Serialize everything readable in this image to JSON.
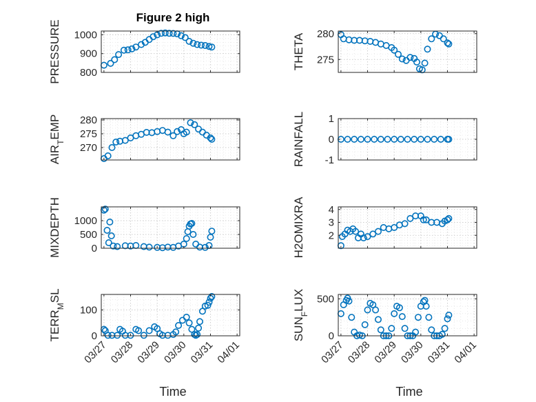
{
  "chart_data": [
    {
      "type": "scatter",
      "title": "Figure 2 high",
      "ylabel": "PRESSURE",
      "ylim": [
        800,
        1020
      ],
      "yticks": [
        "800",
        "900",
        "1000"
      ],
      "series": [
        {
          "name": "PRESSURE",
          "x": [
            0.0,
            0.25,
            0.4,
            0.55,
            0.75,
            0.9,
            1.05,
            1.2,
            1.4,
            1.55,
            1.7,
            1.85,
            2.0,
            2.15,
            2.3,
            2.45,
            2.6,
            2.75,
            2.9,
            3.05,
            3.2,
            3.35,
            3.5,
            3.65,
            3.8,
            3.95,
            4.05
          ],
          "y": [
            838,
            848,
            868,
            895,
            918,
            920,
            925,
            935,
            948,
            960,
            975,
            990,
            1000,
            1008,
            1010,
            1008,
            1007,
            1005,
            995,
            985,
            965,
            955,
            948,
            945,
            943,
            938,
            935
          ]
        }
      ]
    },
    {
      "type": "scatter",
      "title": "",
      "ylabel": "THETA",
      "ylim": [
        272.5,
        280.5
      ],
      "yticks": [
        "275",
        "280"
      ],
      "series": [
        {
          "name": "THETA",
          "x": [
            0.0,
            0.1,
            0.3,
            0.5,
            0.7,
            0.9,
            1.1,
            1.3,
            1.5,
            1.7,
            1.9,
            2.0,
            2.15,
            2.3,
            2.45,
            2.6,
            2.75,
            2.85,
            2.95,
            3.05,
            3.15,
            3.25,
            3.4,
            3.55,
            3.7,
            3.85,
            4.0,
            4.05
          ],
          "y": [
            279.8,
            279.0,
            278.8,
            278.7,
            278.7,
            278.6,
            278.5,
            278.3,
            278.0,
            277.7,
            277.3,
            276.8,
            276.0,
            275.1,
            274.8,
            275.4,
            275.2,
            274.5,
            273.2,
            273.0,
            274.3,
            277.0,
            279.0,
            279.9,
            279.6,
            279.0,
            278.2,
            278.0
          ]
        }
      ]
    },
    {
      "type": "scatter",
      "title": "",
      "ylabel": "AIR_TEMP",
      "ylim": [
        265.5,
        280.5
      ],
      "yticks": [
        "270",
        "275",
        "280"
      ],
      "series": [
        {
          "name": "AIR_TEMP",
          "x": [
            0.0,
            0.15,
            0.3,
            0.45,
            0.6,
            0.8,
            1.0,
            1.2,
            1.4,
            1.6,
            1.8,
            2.0,
            2.2,
            2.4,
            2.6,
            2.75,
            2.9,
            3.0,
            3.1,
            3.25,
            3.4,
            3.55,
            3.7,
            3.85,
            4.0,
            4.05
          ],
          "y": [
            266.0,
            267.0,
            270.0,
            272.0,
            272.3,
            272.6,
            273.5,
            274.3,
            274.8,
            275.5,
            275.4,
            275.8,
            276.2,
            275.6,
            274.3,
            275.8,
            276.5,
            275.0,
            275.6,
            279.0,
            278.3,
            276.7,
            275.6,
            274.5,
            273.5,
            273.0
          ]
        }
      ]
    },
    {
      "type": "scatter",
      "title": "",
      "ylabel": "RAINFALL",
      "ylim": [
        -1,
        1
      ],
      "yticks": [
        "-1",
        "0",
        "1"
      ],
      "series": [
        {
          "name": "RAINFALL",
          "x": [
            0.0,
            0.25,
            0.5,
            0.75,
            1.0,
            1.25,
            1.5,
            1.75,
            2.0,
            2.25,
            2.5,
            2.75,
            3.0,
            3.25,
            3.5,
            3.75,
            4.0,
            4.05
          ],
          "y": [
            0,
            0,
            0,
            0,
            0,
            0,
            0,
            0,
            0,
            0,
            0,
            0,
            0,
            0,
            0,
            0,
            0,
            0
          ]
        }
      ]
    },
    {
      "type": "scatter",
      "title": "",
      "ylabel": "MIXDEPTH",
      "ylim": [
        0,
        1500
      ],
      "yticks": [
        "0",
        "500",
        "1000"
      ],
      "series": [
        {
          "name": "MIXDEPTH",
          "x": [
            0.0,
            0.05,
            0.12,
            0.18,
            0.22,
            0.28,
            0.35,
            0.5,
            0.8,
            1.0,
            1.2,
            1.5,
            1.7,
            2.0,
            2.2,
            2.4,
            2.6,
            2.8,
            3.0,
            3.1,
            3.15,
            3.2,
            3.25,
            3.3,
            3.35,
            3.45,
            3.6,
            3.8,
            3.95,
            4.0,
            4.05
          ],
          "y": [
            1380,
            1420,
            650,
            200,
            950,
            450,
            80,
            60,
            90,
            80,
            100,
            60,
            40,
            30,
            20,
            40,
            30,
            80,
            150,
            350,
            600,
            800,
            880,
            900,
            500,
            150,
            40,
            30,
            100,
            400,
            620
          ]
        }
      ]
    },
    {
      "type": "scatter",
      "title": "",
      "ylabel": "H2OMIXRA",
      "ylim": [
        1,
        4.2
      ],
      "yticks": [
        "2",
        "3",
        "4"
      ],
      "series": [
        {
          "name": "H2OMIXRA",
          "x": [
            0.0,
            0.05,
            0.15,
            0.25,
            0.35,
            0.45,
            0.55,
            0.65,
            0.75,
            0.85,
            1.0,
            1.2,
            1.4,
            1.6,
            1.8,
            2.0,
            2.2,
            2.4,
            2.6,
            2.8,
            3.0,
            3.1,
            3.2,
            3.4,
            3.6,
            3.8,
            3.9,
            4.0,
            4.05
          ],
          "y": [
            1.2,
            1.9,
            2.1,
            2.4,
            2.3,
            2.5,
            2.3,
            1.8,
            2.1,
            1.8,
            1.9,
            2.1,
            2.3,
            2.6,
            2.5,
            2.6,
            2.8,
            2.9,
            3.3,
            3.5,
            3.5,
            3.2,
            3.2,
            3.0,
            3.0,
            2.9,
            3.1,
            3.2,
            3.3
          ]
        }
      ]
    },
    {
      "type": "scatter",
      "title": "",
      "ylabel": "TERR_MSL",
      "ylim": [
        0,
        160
      ],
      "yticks": [
        "0",
        "100"
      ],
      "series": [
        {
          "name": "TERR_MSL",
          "x": [
            0.0,
            0.05,
            0.15,
            0.3,
            0.5,
            0.6,
            0.7,
            0.8,
            1.0,
            1.2,
            1.3,
            1.5,
            1.7,
            1.9,
            2.0,
            2.1,
            2.2,
            2.4,
            2.6,
            2.7,
            2.8,
            2.95,
            3.1,
            3.2,
            3.3,
            3.4,
            3.45,
            3.5,
            3.55,
            3.6,
            3.7,
            3.8,
            3.9,
            3.95,
            4.0,
            4.05
          ],
          "y": [
            25,
            20,
            2,
            2,
            2,
            25,
            18,
            2,
            2,
            25,
            20,
            2,
            20,
            35,
            28,
            8,
            2,
            2,
            5,
            15,
            40,
            60,
            72,
            50,
            25,
            5,
            2,
            5,
            30,
            55,
            95,
            115,
            118,
            130,
            145,
            152
          ]
        }
      ]
    },
    {
      "type": "scatter",
      "title": "",
      "ylabel": "SUN_FLUX",
      "ylim": [
        0,
        560
      ],
      "yticks": [
        "0",
        "500"
      ],
      "series": [
        {
          "name": "SUN_FLUX",
          "x": [
            0.0,
            0.1,
            0.2,
            0.25,
            0.3,
            0.4,
            0.5,
            0.6,
            0.7,
            0.8,
            0.9,
            1.0,
            1.1,
            1.2,
            1.3,
            1.4,
            1.5,
            1.6,
            1.7,
            1.8,
            1.9,
            2.0,
            2.1,
            2.2,
            2.3,
            2.4,
            2.5,
            2.6,
            2.7,
            2.8,
            2.9,
            3.0,
            3.1,
            3.15,
            3.2,
            3.3,
            3.4,
            3.5,
            3.6,
            3.7,
            3.8,
            3.9,
            4.0,
            4.05
          ],
          "y": [
            300,
            420,
            480,
            510,
            470,
            250,
            50,
            0,
            10,
            0,
            150,
            350,
            440,
            420,
            350,
            220,
            80,
            0,
            0,
            0,
            100,
            300,
            400,
            380,
            260,
            100,
            0,
            0,
            0,
            50,
            250,
            400,
            460,
            480,
            400,
            250,
            80,
            0,
            0,
            0,
            20,
            100,
            230,
            280
          ]
        }
      ]
    }
  ],
  "xaxis": {
    "label": "Time",
    "ticks": [
      "03/27",
      "03/28",
      "03/29",
      "03/30",
      "03/31",
      "04/01"
    ]
  },
  "colors": {
    "marker": "#0072BD",
    "grid": "#bfbfbf",
    "axis": "#262626"
  }
}
